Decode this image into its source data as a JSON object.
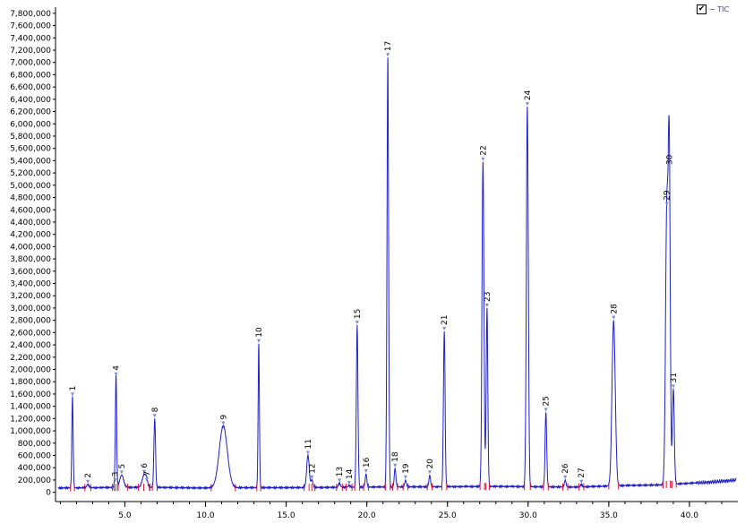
{
  "chart_data": {
    "type": "line",
    "title": "",
    "xlabel": "",
    "ylabel": "",
    "xlim": [
      0.7,
      43.0
    ],
    "ylim": [
      -20000,
      7900000
    ],
    "grid": false,
    "legend": {
      "placement": "top-right",
      "checked": true,
      "check_mark": "✔",
      "label": "− TIC",
      "color": "#1f3cc8"
    },
    "colors": {
      "trace": "#1f1fd0",
      "baseline": "#e01030",
      "marker": "#7a8cd8",
      "axis": "#000000"
    },
    "yticks": [
      {
        "v": 0,
        "label": "0"
      },
      {
        "v": 200000,
        "label": "200,000"
      },
      {
        "v": 400000,
        "label": "400,000"
      },
      {
        "v": 600000,
        "label": "600,000"
      },
      {
        "v": 800000,
        "label": "800,000"
      },
      {
        "v": 1000000,
        "label": "1,000,000"
      },
      {
        "v": 1200000,
        "label": "1,200,000"
      },
      {
        "v": 1400000,
        "label": "1,400,000"
      },
      {
        "v": 1600000,
        "label": "1,600,000"
      },
      {
        "v": 1800000,
        "label": "1,800,000"
      },
      {
        "v": 2000000,
        "label": "2,000,000"
      },
      {
        "v": 2200000,
        "label": "2,200,000"
      },
      {
        "v": 2400000,
        "label": "2,400,000"
      },
      {
        "v": 2600000,
        "label": "2,600,000"
      },
      {
        "v": 2800000,
        "label": "2,800,000"
      },
      {
        "v": 3000000,
        "label": "3,000,000"
      },
      {
        "v": 3200000,
        "label": "3,200,000"
      },
      {
        "v": 3400000,
        "label": "3,400,000"
      },
      {
        "v": 3600000,
        "label": "3,600,000"
      },
      {
        "v": 3800000,
        "label": "3,800,000"
      },
      {
        "v": 4000000,
        "label": "4,000,000"
      },
      {
        "v": 4200000,
        "label": "4,200,000"
      },
      {
        "v": 4400000,
        "label": "4,400,000"
      },
      {
        "v": 4600000,
        "label": "4,600,000"
      },
      {
        "v": 4800000,
        "label": "4,800,000"
      },
      {
        "v": 5000000,
        "label": "5,000,000"
      },
      {
        "v": 5200000,
        "label": "5,200,000"
      },
      {
        "v": 5400000,
        "label": "5,400,000"
      },
      {
        "v": 5600000,
        "label": "5,600,000"
      },
      {
        "v": 5800000,
        "label": "5,800,000"
      },
      {
        "v": 6000000,
        "label": "6,000,000"
      },
      {
        "v": 6200000,
        "label": "6,200,000"
      },
      {
        "v": 6400000,
        "label": "6,400,000"
      },
      {
        "v": 6600000,
        "label": "6,600,000"
      },
      {
        "v": 6800000,
        "label": "6,800,000"
      },
      {
        "v": 7000000,
        "label": "7,000,000"
      },
      {
        "v": 7200000,
        "label": "7,200,000"
      },
      {
        "v": 7400000,
        "label": "7,400,000"
      },
      {
        "v": 7600000,
        "label": "7,600,000"
      },
      {
        "v": 7800000,
        "label": "7,800,000"
      }
    ],
    "xticks": [
      {
        "v": 5.0,
        "label": "5.0"
      },
      {
        "v": 10.0,
        "label": "10.0"
      },
      {
        "v": 15.0,
        "label": "15.0"
      },
      {
        "v": 20.0,
        "label": "20.0"
      },
      {
        "v": 25.0,
        "label": "25.0"
      },
      {
        "v": 30.0,
        "label": "30.0"
      },
      {
        "v": 35.0,
        "label": "35.0"
      },
      {
        "v": 40.0,
        "label": "40.0"
      }
    ],
    "baseline": [
      [
        0.8,
        70000
      ],
      [
        5.0,
        80000
      ],
      [
        7.0,
        80000
      ],
      [
        9.5,
        70000
      ],
      [
        12.0,
        75000
      ],
      [
        15.0,
        75000
      ],
      [
        18.0,
        80000
      ],
      [
        20.0,
        85000
      ],
      [
        24.0,
        90000
      ],
      [
        28.0,
        95000
      ],
      [
        33.0,
        85000
      ],
      [
        36.0,
        110000
      ],
      [
        38.3,
        120000
      ],
      [
        39.5,
        140000
      ],
      [
        41.0,
        160000
      ],
      [
        43.0,
        200000
      ]
    ],
    "peaks": [
      {
        "label": "1",
        "rt": 1.75,
        "height": 1550000,
        "width": 0.04
      },
      {
        "label": "2",
        "rt": 2.7,
        "height": 130000,
        "width": 0.06
      },
      {
        "label": "3",
        "rt": 4.4,
        "height": 150000,
        "width": 0.06
      },
      {
        "label": "4",
        "rt": 4.45,
        "height": 1880000,
        "width": 0.04
      },
      {
        "label": "5",
        "rt": 4.8,
        "height": 280000,
        "width": 0.12
      },
      {
        "label": "6",
        "rt": 6.2,
        "height": 290000,
        "width": 0.12
      },
      {
        "label": "7",
        "rt": 6.35,
        "height": 160000,
        "width": 0.06
      },
      {
        "label": "8",
        "rt": 6.85,
        "height": 1200000,
        "width": 0.05
      },
      {
        "label": "9",
        "rt": 11.1,
        "height": 1080000,
        "width": 0.25
      },
      {
        "label": "10",
        "rt": 13.3,
        "height": 2420000,
        "width": 0.04
      },
      {
        "label": "11",
        "rt": 16.35,
        "height": 600000,
        "width": 0.08
      },
      {
        "label": "12",
        "rt": 16.6,
        "height": 200000,
        "width": 0.06
      },
      {
        "label": "13",
        "rt": 18.3,
        "height": 150000,
        "width": 0.06
      },
      {
        "label": "14",
        "rt": 18.9,
        "height": 110000,
        "width": 0.06
      },
      {
        "label": "15",
        "rt": 19.4,
        "height": 2720000,
        "width": 0.05
      },
      {
        "label": "16",
        "rt": 19.95,
        "height": 300000,
        "width": 0.05
      },
      {
        "label": "17",
        "rt": 21.3,
        "height": 7080000,
        "width": 0.05
      },
      {
        "label": "18",
        "rt": 21.75,
        "height": 390000,
        "width": 0.05
      },
      {
        "label": "19",
        "rt": 22.4,
        "height": 200000,
        "width": 0.05
      },
      {
        "label": "20",
        "rt": 23.9,
        "height": 280000,
        "width": 0.05
      },
      {
        "label": "21",
        "rt": 24.8,
        "height": 2620000,
        "width": 0.05
      },
      {
        "label": "22",
        "rt": 27.2,
        "height": 5380000,
        "width": 0.06
      },
      {
        "label": "23",
        "rt": 27.45,
        "height": 3000000,
        "width": 0.05
      },
      {
        "label": "24",
        "rt": 29.95,
        "height": 6280000,
        "width": 0.06
      },
      {
        "label": "25",
        "rt": 31.1,
        "height": 1300000,
        "width": 0.05
      },
      {
        "label": "26",
        "rt": 32.3,
        "height": 200000,
        "width": 0.05
      },
      {
        "label": "27",
        "rt": 33.3,
        "height": 130000,
        "width": 0.05
      },
      {
        "label": "28",
        "rt": 35.3,
        "height": 2800000,
        "width": 0.1
      },
      {
        "label": "29",
        "rt": 38.6,
        "height": 4650000,
        "width": 0.08
      },
      {
        "label": "30",
        "rt": 38.75,
        "height": 5230000,
        "width": 0.06
      },
      {
        "label": "31",
        "rt": 39.0,
        "height": 1680000,
        "width": 0.06
      }
    ]
  }
}
